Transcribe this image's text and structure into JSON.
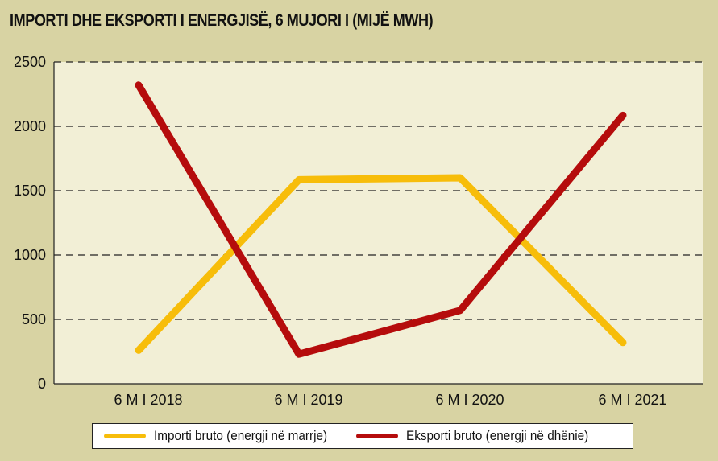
{
  "chart_data": {
    "type": "line",
    "title": "IMPORTI DHE EKSPORTI I ENERGJISË, 6 MUJORI I (MIJË MWH)",
    "categories": [
      "6 M I 2018",
      "6 M I 2019",
      "6 M I 2020",
      "6 M I 2021"
    ],
    "series": [
      {
        "name": "Importi bruto (energji në marrje)",
        "color": "#f7bd0a",
        "values": [
          260,
          1585,
          1600,
          320
        ]
      },
      {
        "name": "Eksporti bruto (energji në dhënie)",
        "color": "#b50c0c",
        "values": [
          2320,
          230,
          570,
          2085
        ]
      }
    ],
    "ylim": [
      0,
      2500
    ],
    "yticks": [
      "0",
      "500",
      "1000",
      "1500",
      "2000",
      "2500"
    ],
    "grid": true,
    "legend_position": "bottom",
    "plot_background": "#f2efd6",
    "page_background": "#d8d3a3"
  }
}
